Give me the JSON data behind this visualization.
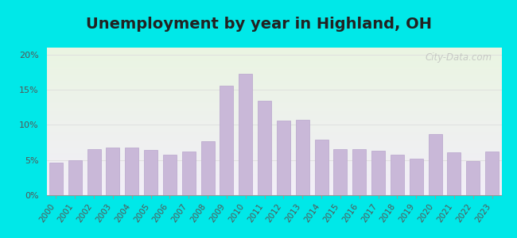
{
  "title": "Unemployment by year in Highland, OH",
  "years": [
    2000,
    2001,
    2002,
    2003,
    2004,
    2005,
    2006,
    2007,
    2008,
    2009,
    2010,
    2011,
    2012,
    2013,
    2014,
    2015,
    2016,
    2017,
    2018,
    2019,
    2020,
    2021,
    2022,
    2023
  ],
  "values": [
    4.6,
    5.0,
    6.5,
    6.8,
    6.8,
    6.4,
    5.8,
    6.2,
    7.7,
    15.6,
    17.3,
    13.4,
    10.6,
    10.7,
    7.9,
    6.6,
    6.6,
    6.3,
    5.8,
    5.2,
    8.7,
    6.1,
    4.9,
    6.2
  ],
  "bar_color": "#c9b8d8",
  "bar_edge_color": "#b8a5cc",
  "ylim": [
    0,
    21
  ],
  "yticks": [
    0,
    5,
    10,
    15,
    20
  ],
  "ytick_labels": [
    "0%",
    "5%",
    "10%",
    "15%",
    "20%"
  ],
  "bg_outer": "#00e8e8",
  "bg_gradient_top": "#eaf5e2",
  "bg_gradient_bottom": "#f2eef8",
  "watermark_text": "City-Data.com",
  "title_fontsize": 14,
  "tick_fontsize": 8,
  "title_color": "#222222",
  "tick_color": "#555555",
  "grid_color": "#dddddd",
  "spine_color": "#999999"
}
